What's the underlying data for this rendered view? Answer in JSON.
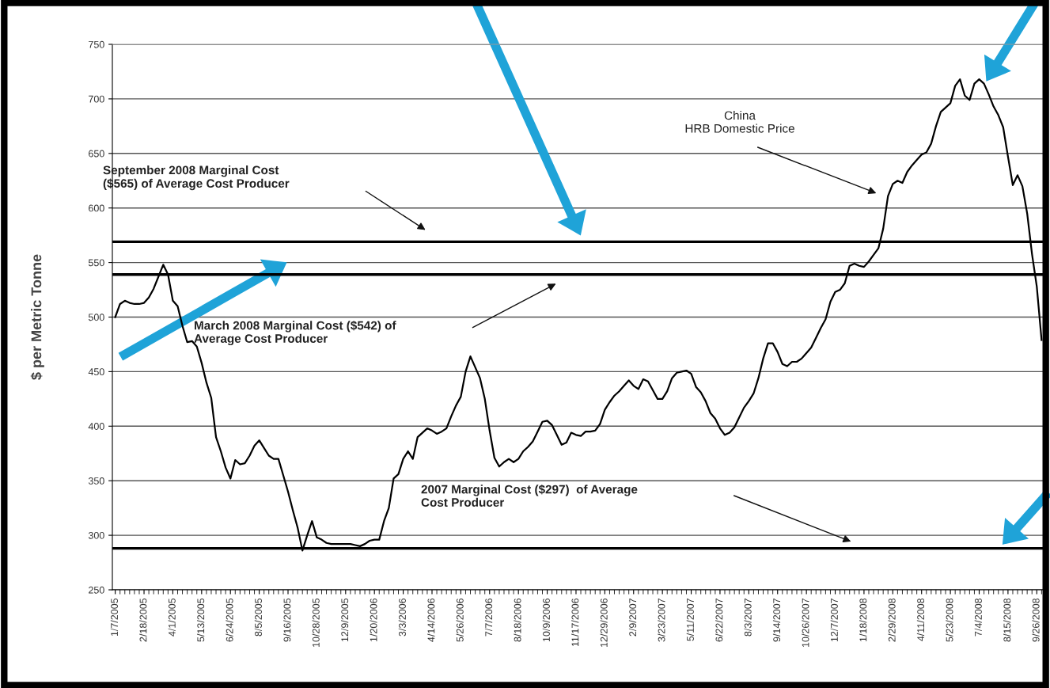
{
  "chart_data": {
    "type": "line",
    "ylabel": "$ per Metric Tonne",
    "categories": [
      "1/7/2005",
      null,
      null,
      null,
      null,
      null,
      "2/18/2005",
      null,
      null,
      null,
      null,
      null,
      "4/1/2005",
      null,
      null,
      null,
      null,
      null,
      "5/13/2005",
      null,
      null,
      null,
      null,
      null,
      "6/24/2005",
      null,
      null,
      null,
      null,
      null,
      "8/5/2005",
      null,
      null,
      null,
      null,
      null,
      "9/16/2005",
      null,
      null,
      null,
      null,
      null,
      "10/28/2005",
      null,
      null,
      null,
      null,
      null,
      "12/9/2005",
      null,
      null,
      null,
      null,
      null,
      "1/20/2006",
      null,
      null,
      null,
      null,
      null,
      "3/3/2006",
      null,
      null,
      null,
      null,
      null,
      "4/14/2006",
      null,
      null,
      null,
      null,
      null,
      "5/26/2006",
      null,
      null,
      null,
      null,
      null,
      "7/7/2006",
      null,
      null,
      null,
      null,
      null,
      "8/18/2006",
      null,
      null,
      null,
      null,
      null,
      "10/9/2006",
      null,
      null,
      null,
      null,
      null,
      "11/17/2006",
      null,
      null,
      null,
      null,
      null,
      "12/29/2006",
      null,
      null,
      null,
      null,
      null,
      "2/9/2007",
      null,
      null,
      null,
      null,
      null,
      "3/23/2007",
      null,
      null,
      null,
      null,
      null,
      "5/11/2007",
      null,
      null,
      null,
      null,
      null,
      "6/22/2007",
      null,
      null,
      null,
      null,
      null,
      "8/3/2007",
      null,
      null,
      null,
      null,
      null,
      "9/14/2007",
      null,
      null,
      null,
      null,
      null,
      "10/26/2007",
      null,
      null,
      null,
      null,
      null,
      "12/7/2007",
      null,
      null,
      null,
      null,
      null,
      "1/18/2008",
      null,
      null,
      null,
      null,
      null,
      "2/29/2008",
      null,
      null,
      null,
      null,
      null,
      "4/11/2008",
      null,
      null,
      null,
      null,
      null,
      "5/23/2008",
      null,
      null,
      null,
      null,
      null,
      "7/4/2008",
      null,
      null,
      null,
      null,
      null,
      "8/15/2008",
      null,
      null,
      null,
      null,
      null,
      "9/26/2008",
      null
    ],
    "ylim": [
      250,
      750
    ],
    "yticks": [
      250,
      300,
      350,
      400,
      450,
      500,
      550,
      600,
      650,
      700,
      750
    ],
    "grid": "y",
    "series": [
      {
        "color": "#000000",
        "values": [
          500,
          512,
          515,
          513,
          512,
          512,
          513,
          518,
          526,
          537,
          548,
          539,
          515,
          510,
          492,
          477,
          478,
          473,
          458,
          440,
          426,
          390,
          377,
          362,
          352,
          369,
          365,
          366,
          373,
          382,
          387,
          380,
          373,
          370,
          370,
          355,
          340,
          323,
          307,
          286,
          300,
          313,
          298,
          296,
          293,
          292,
          292,
          292,
          292,
          292,
          291,
          290,
          292,
          295,
          296,
          296,
          313,
          325,
          352,
          356,
          370,
          377,
          370,
          390,
          394,
          398,
          396,
          393,
          395,
          398,
          409,
          419,
          427,
          450,
          464,
          454,
          444,
          425,
          396,
          371,
          363,
          367,
          370,
          367,
          370,
          377,
          381,
          386,
          395,
          404,
          405,
          401,
          392,
          383,
          385,
          394,
          392,
          391,
          395,
          395,
          396,
          402,
          415,
          422,
          428,
          432,
          437,
          442,
          437,
          434,
          443,
          441,
          433,
          425,
          425,
          432,
          444,
          449,
          450,
          451,
          448,
          436,
          431,
          423,
          412,
          407,
          398,
          392,
          394,
          399,
          408,
          417,
          423,
          430,
          444,
          462,
          476,
          476,
          468,
          457,
          455,
          459,
          459,
          462,
          467,
          472,
          481,
          490,
          498,
          514,
          523,
          525,
          531,
          547,
          549,
          547,
          546,
          551,
          557,
          563,
          581,
          611,
          622,
          625,
          623,
          633,
          639,
          644,
          649,
          651,
          659,
          675,
          688,
          692,
          696,
          712,
          718,
          703,
          699,
          714,
          718,
          714,
          704,
          693,
          685,
          674,
          647,
          621,
          630,
          620,
          595,
          558,
          528,
          479
        ]
      }
    ],
    "ref_lines": [
      {
        "axis": "y",
        "value": 569,
        "color": "#000000"
      },
      {
        "axis": "y",
        "value": 539,
        "color": "#000000"
      },
      {
        "axis": "y",
        "value": 288,
        "color": "#000000"
      }
    ],
    "annotations": [
      "September 2008 Marginal Cost\n($565) of Average Cost Producer",
      "March 2008 Marginal Cost ($542) of\nAverage Cost Producer",
      "China\nHRB Domestic Price",
      "2007 Marginal Cost ($297)  of Average\nCost Producer"
    ]
  }
}
